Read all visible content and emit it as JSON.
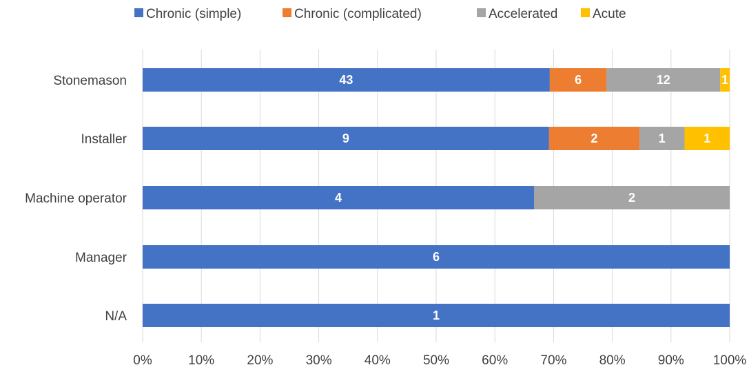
{
  "chart_data": {
    "type": "bar",
    "orientation": "horizontal",
    "stacked": "percent",
    "categories": [
      "Stonemason",
      "Installer",
      "Machine operator",
      "Manager",
      "N/A"
    ],
    "series": [
      {
        "name": "Chronic (simple)",
        "color": "#4472C4",
        "values": [
          43,
          9,
          4,
          6,
          1
        ]
      },
      {
        "name": "Chronic (complicated)",
        "color": "#ED7D31",
        "values": [
          6,
          2,
          0,
          0,
          0
        ]
      },
      {
        "name": "Accelerated",
        "color": "#A5A5A5",
        "values": [
          12,
          1,
          2,
          0,
          0
        ]
      },
      {
        "name": "Acute",
        "color": "#FFC000",
        "values": [
          1,
          1,
          0,
          0,
          0
        ]
      }
    ],
    "x_ticks": [
      "0%",
      "10%",
      "20%",
      "30%",
      "40%",
      "50%",
      "60%",
      "70%",
      "80%",
      "90%",
      "100%"
    ],
    "xlim": [
      0,
      100
    ],
    "grid": "vertical",
    "legend_position": "top"
  }
}
